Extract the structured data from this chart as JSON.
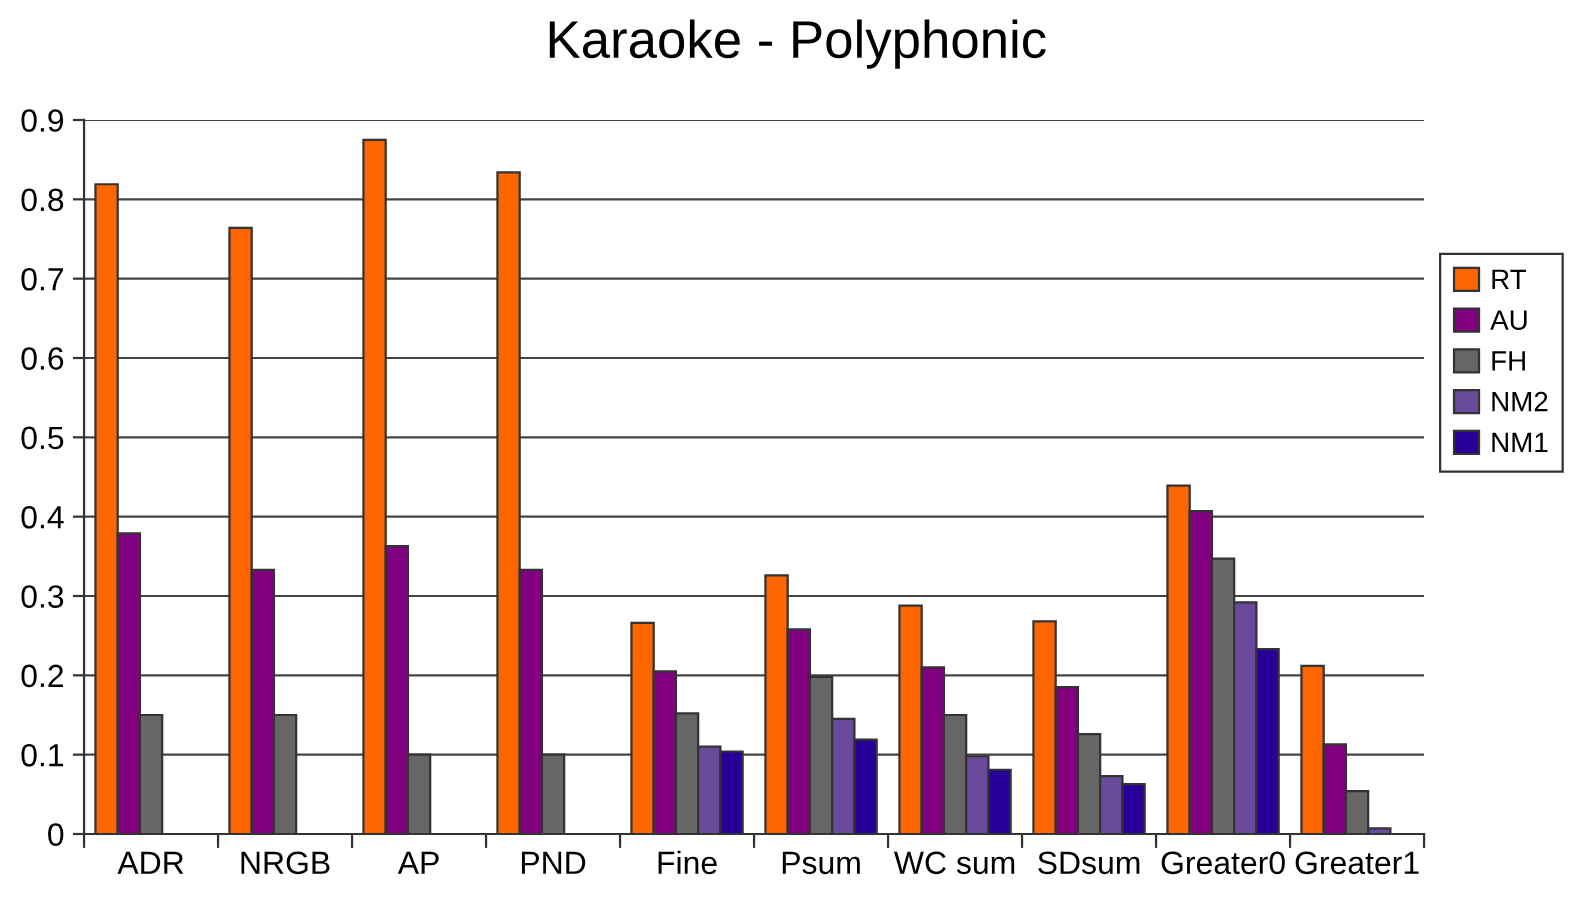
{
  "chart_data": {
    "type": "bar",
    "title": "Karaoke - Polyphonic",
    "categories": [
      "ADR",
      "NRGB",
      "AP",
      "PND",
      "Fine",
      "Psum",
      "WC sum",
      "SDsum",
      "Greater0",
      "Greater1"
    ],
    "series": [
      {
        "name": "RT",
        "color": "#ff6600",
        "values": [
          0.819,
          0.764,
          0.875,
          0.834,
          0.266,
          0.326,
          0.288,
          0.268,
          0.439,
          0.212
        ]
      },
      {
        "name": "AU",
        "color": "#800080",
        "values": [
          0.379,
          0.333,
          0.363,
          0.333,
          0.205,
          0.258,
          0.21,
          0.185,
          0.407,
          0.113
        ]
      },
      {
        "name": "FH",
        "color": "#666666",
        "values": [
          0.15,
          0.15,
          0.1,
          0.1,
          0.152,
          0.198,
          0.15,
          0.126,
          0.347,
          0.054
        ]
      },
      {
        "name": "NM2",
        "color": "#6a4a9a",
        "values": [
          null,
          null,
          null,
          null,
          0.11,
          0.145,
          0.098,
          0.073,
          0.292,
          0.007
        ]
      },
      {
        "name": "NM1",
        "color": "#280099",
        "values": [
          null,
          null,
          null,
          null,
          0.104,
          0.119,
          0.081,
          0.063,
          0.233,
          null
        ]
      }
    ],
    "ylim": [
      0,
      0.9
    ],
    "yticks": [
      0,
      0.1,
      0.2,
      0.3,
      0.4,
      0.5,
      0.6,
      0.7,
      0.8,
      0.9
    ],
    "grid": "y",
    "legend": "right"
  }
}
